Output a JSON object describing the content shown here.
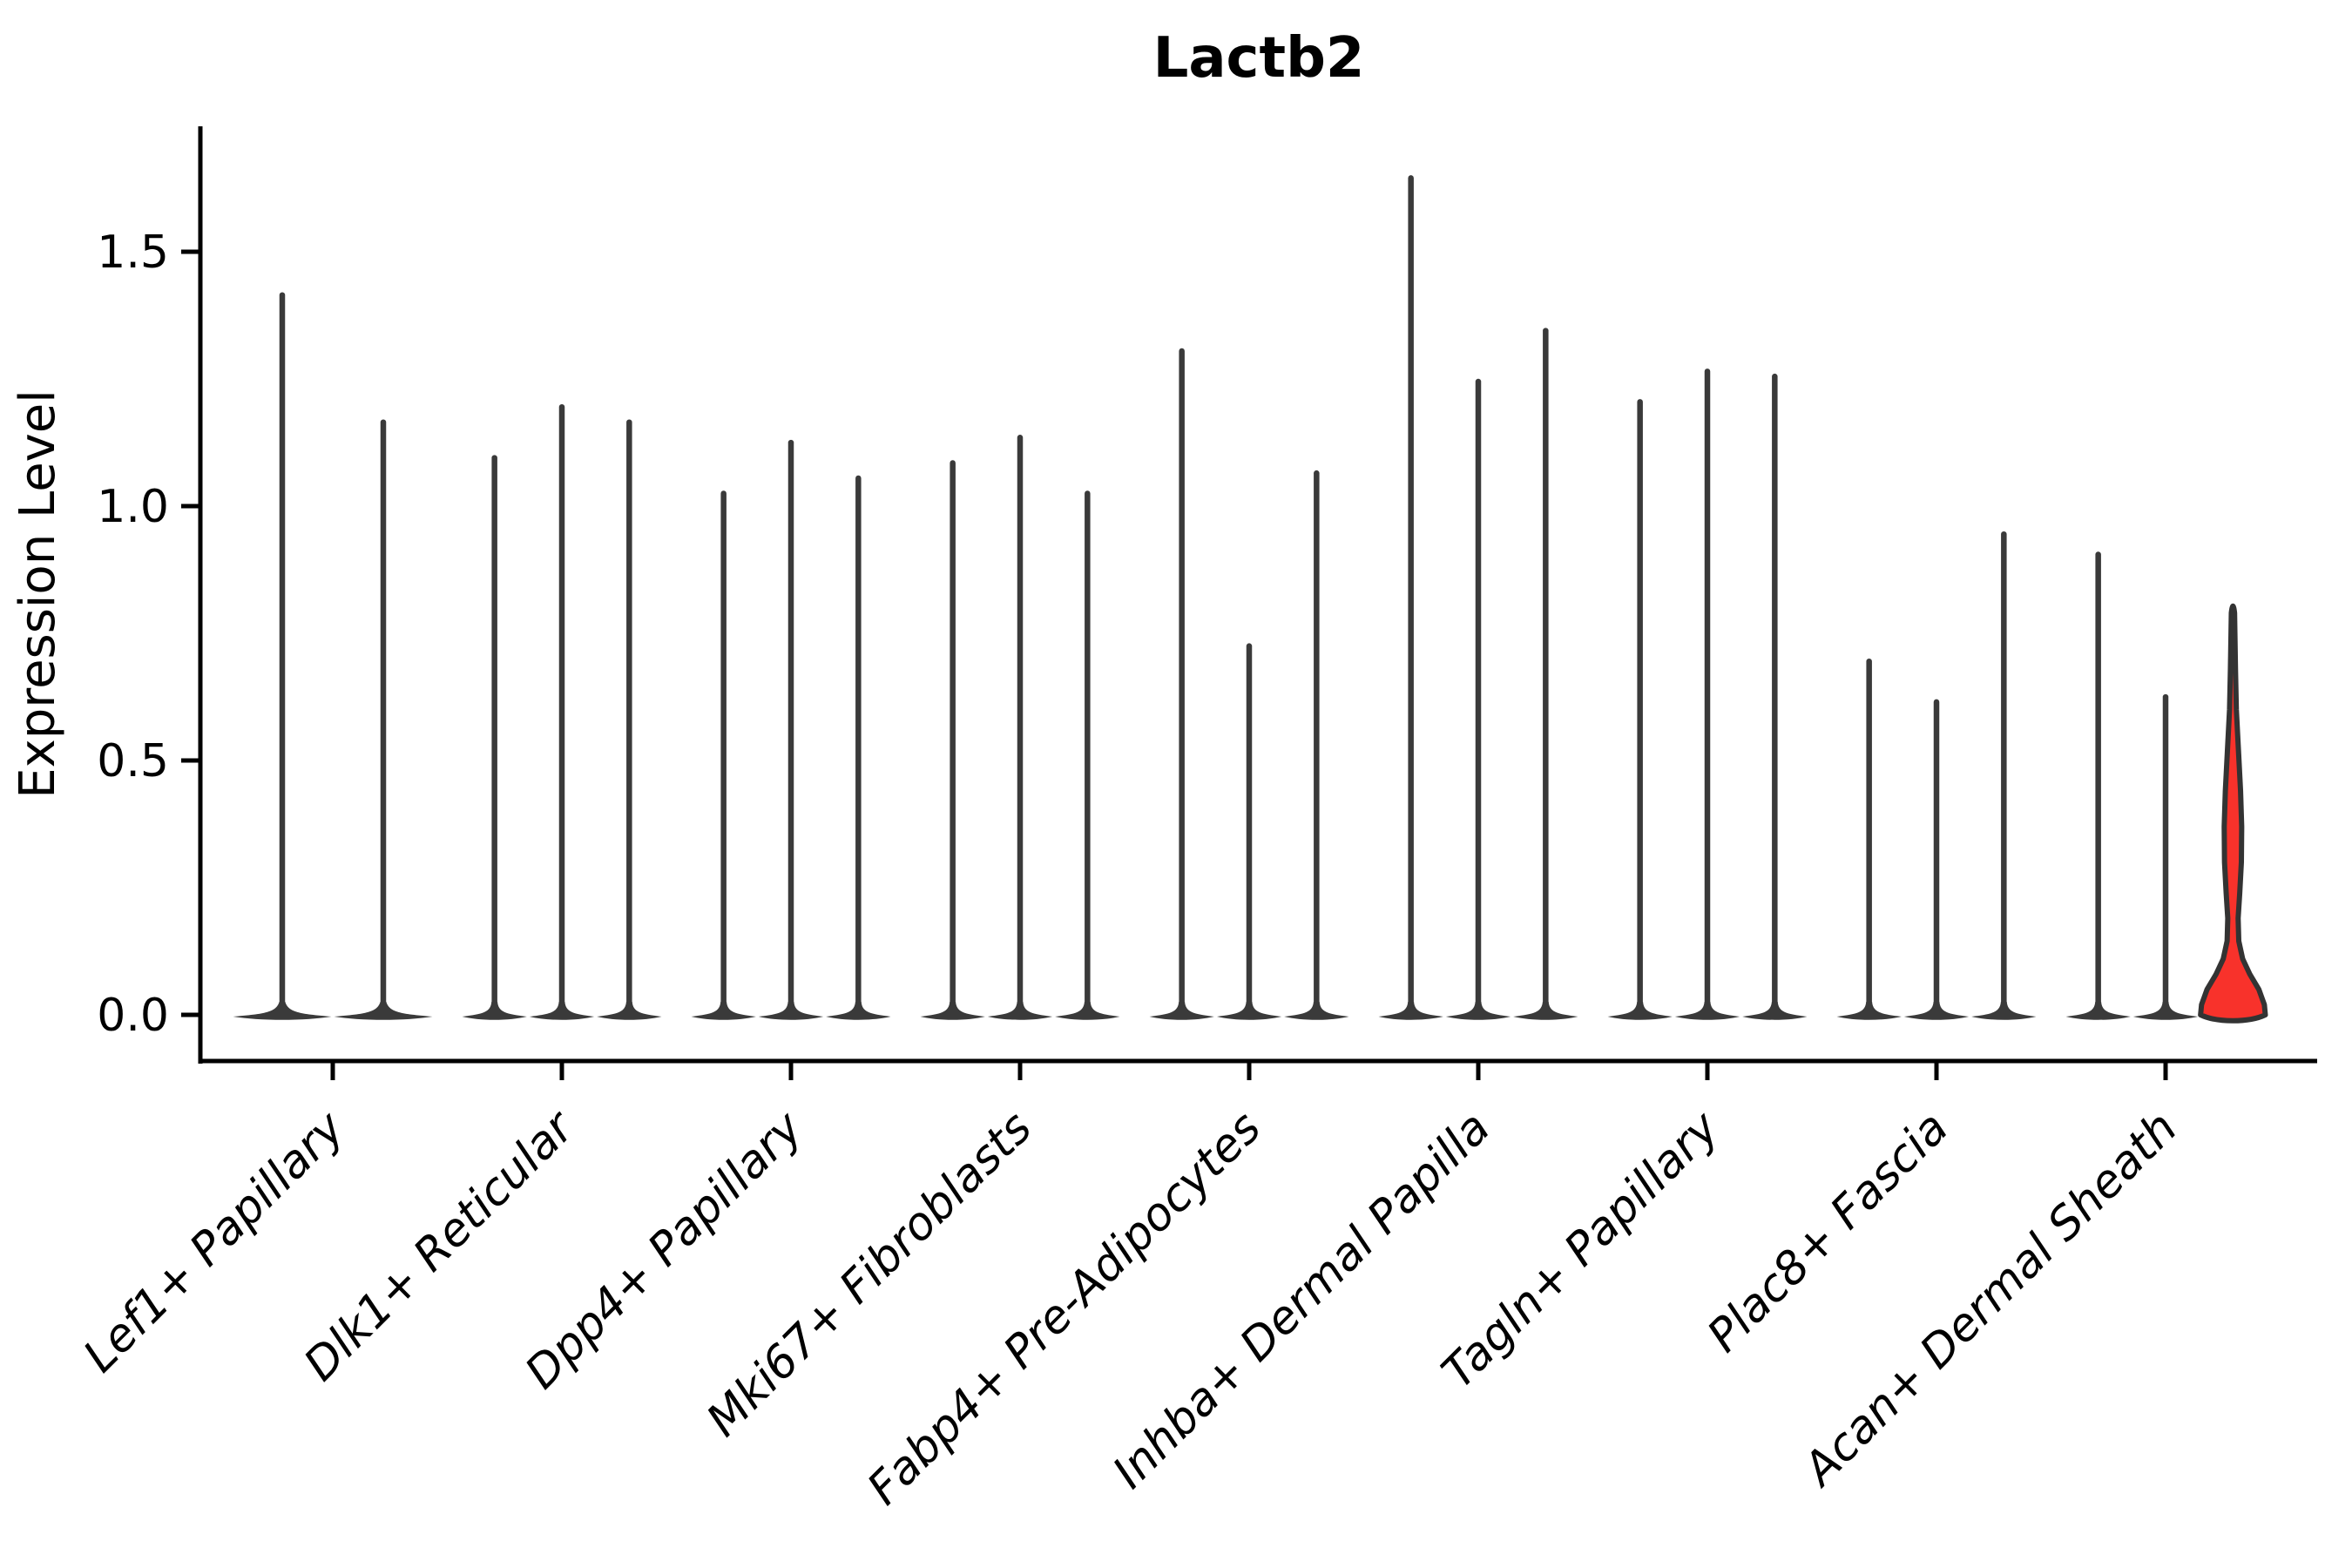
{
  "chart_data": {
    "type": "violin",
    "title": "Lactb2",
    "xlabel": "",
    "ylabel": "Expression Level",
    "yticks": [
      0.0,
      0.5,
      1.0,
      1.5
    ],
    "ylim": [
      0,
      1.75
    ],
    "grid": false,
    "legend": "none",
    "groups": [
      {
        "label": "Lef1+ Papillary",
        "violins": [
          {
            "max": 1.42
          },
          {
            "max": 1.17
          }
        ]
      },
      {
        "label": "Dlk1+ Reticular",
        "violins": [
          {
            "max": 1.1
          },
          {
            "max": 1.2
          },
          {
            "max": 1.17
          }
        ]
      },
      {
        "label": "Dpp4+ Papillary",
        "violins": [
          {
            "max": 1.03
          },
          {
            "max": 1.13
          },
          {
            "max": 1.06
          }
        ]
      },
      {
        "label": "Mki67+ Fibroblasts",
        "violins": [
          {
            "max": 1.09
          },
          {
            "max": 1.14
          },
          {
            "max": 1.03
          }
        ]
      },
      {
        "label": "Fabp4+ Pre-Adipocytes",
        "violins": [
          {
            "max": 1.31
          },
          {
            "max": 0.73
          },
          {
            "max": 1.07
          }
        ]
      },
      {
        "label": "Inhba+ Dermal Papilla",
        "violins": [
          {
            "max": 1.65
          },
          {
            "max": 1.25
          },
          {
            "max": 1.35
          }
        ]
      },
      {
        "label": "Tagln+ Papillary",
        "violins": [
          {
            "max": 1.21
          },
          {
            "max": 1.27
          },
          {
            "max": 1.26
          }
        ]
      },
      {
        "label": "Plac8+ Fascia",
        "violins": [
          {
            "max": 0.7
          },
          {
            "max": 0.62
          },
          {
            "max": 0.95
          }
        ]
      },
      {
        "label": "Acan+ Dermal Sheath",
        "violins": [
          {
            "max": 0.91
          },
          {
            "max": 0.63
          },
          {
            "max": 0.81,
            "highlight": true,
            "profile": [
              [
                0.0,
                1.0
              ],
              [
                0.02,
                0.97
              ],
              [
                0.05,
                0.8
              ],
              [
                0.08,
                0.52
              ],
              [
                0.11,
                0.3
              ],
              [
                0.145,
                0.18
              ],
              [
                0.19,
                0.16
              ],
              [
                0.24,
                0.21
              ],
              [
                0.3,
                0.26
              ],
              [
                0.37,
                0.27
              ],
              [
                0.44,
                0.235
              ],
              [
                0.52,
                0.17
              ],
              [
                0.6,
                0.105
              ],
              [
                0.68,
                0.078
              ],
              [
                0.75,
                0.06
              ],
              [
                0.79,
                0.05
              ]
            ]
          }
        ]
      }
    ],
    "colors": {
      "violin_dark": "#3A3A3A",
      "highlight_fill": "#F8322B",
      "highlight_stroke": "#333333",
      "axis": "#000000"
    }
  }
}
